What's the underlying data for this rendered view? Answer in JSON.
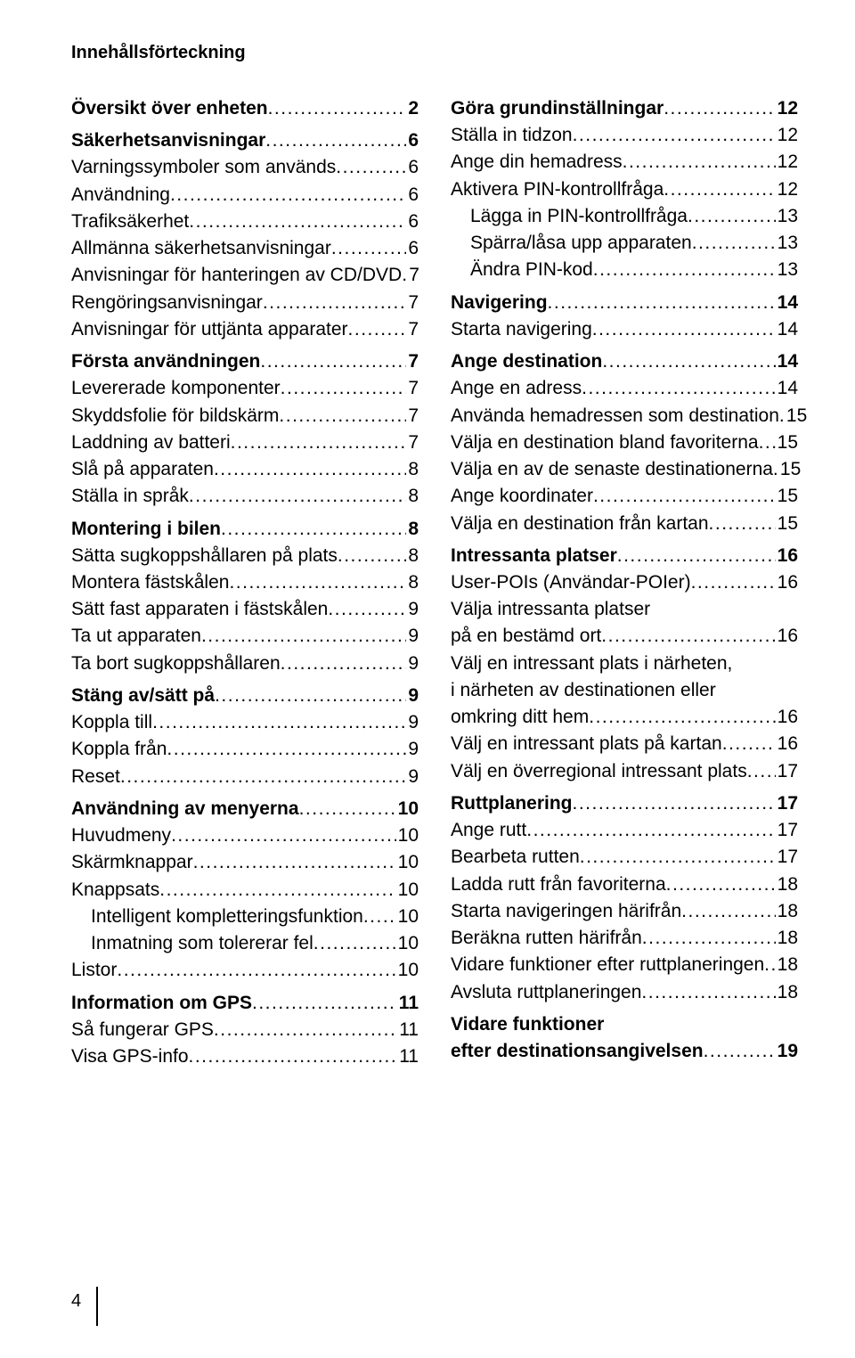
{
  "header": "Innehållsförteckning",
  "page_number": "4",
  "left": [
    {
      "type": "entry",
      "bold": true,
      "label": "Översikt över enheten",
      "page": "2"
    },
    {
      "type": "gap"
    },
    {
      "type": "entry",
      "bold": true,
      "label": "Säkerhetsanvisningar",
      "page": "6"
    },
    {
      "type": "entry",
      "label": "Varningssymboler som används",
      "page": "6"
    },
    {
      "type": "entry",
      "label": "Användning",
      "page": "6"
    },
    {
      "type": "entry",
      "label": "Trafiksäkerhet",
      "page": "6"
    },
    {
      "type": "entry",
      "label": "Allmänna säkerhetsanvisningar",
      "page": "6"
    },
    {
      "type": "entry",
      "label": "Anvisningar för hanteringen av CD/DVD",
      "page": "7"
    },
    {
      "type": "entry",
      "label": "Rengöringsanvisningar",
      "page": "7"
    },
    {
      "type": "entry",
      "label": "Anvisningar för uttjänta apparater",
      "page": "7"
    },
    {
      "type": "gap"
    },
    {
      "type": "entry",
      "bold": true,
      "label": "Första användningen",
      "page": "7"
    },
    {
      "type": "entry",
      "label": "Levererade komponenter",
      "page": "7"
    },
    {
      "type": "entry",
      "label": "Skyddsfolie för bildskärm",
      "page": "7"
    },
    {
      "type": "entry",
      "label": "Laddning av batteri",
      "page": "7"
    },
    {
      "type": "entry",
      "label": "Slå på apparaten",
      "page": "8"
    },
    {
      "type": "entry",
      "label": "Ställa in språk",
      "page": "8"
    },
    {
      "type": "gap"
    },
    {
      "type": "entry",
      "bold": true,
      "label": "Montering i bilen",
      "page": "8"
    },
    {
      "type": "entry",
      "label": "Sätta sugkoppshållaren på plats",
      "page": "8"
    },
    {
      "type": "entry",
      "label": "Montera fästskålen",
      "page": "8"
    },
    {
      "type": "entry",
      "label": "Sätt fast apparaten i fästskålen",
      "page": "9"
    },
    {
      "type": "entry",
      "label": "Ta ut apparaten",
      "page": "9"
    },
    {
      "type": "entry",
      "label": "Ta bort sugkoppshållaren",
      "page": "9"
    },
    {
      "type": "gap"
    },
    {
      "type": "entry",
      "bold": true,
      "label": "Stäng av/sätt på",
      "page": "9"
    },
    {
      "type": "entry",
      "label": "Koppla till",
      "page": "9"
    },
    {
      "type": "entry",
      "label": "Koppla från",
      "page": "9"
    },
    {
      "type": "entry",
      "label": "Reset",
      "page": "9"
    },
    {
      "type": "gap"
    },
    {
      "type": "entry",
      "bold": true,
      "label": "Användning av menyerna",
      "page": "10"
    },
    {
      "type": "entry",
      "label": "Huvudmeny",
      "page": "10"
    },
    {
      "type": "entry",
      "label": "Skärmknappar",
      "page": "10"
    },
    {
      "type": "entry",
      "label": "Knappsats",
      "page": "10"
    },
    {
      "type": "entry",
      "indent": 1,
      "label": "Intelligent kompletteringsfunktion",
      "page": "10"
    },
    {
      "type": "entry",
      "indent": 1,
      "label": "Inmatning som tolererar fel",
      "page": "10"
    },
    {
      "type": "entry",
      "label": "Listor",
      "page": "10"
    },
    {
      "type": "gap"
    },
    {
      "type": "entry",
      "bold": true,
      "label": "Information om GPS",
      "page": "11"
    },
    {
      "type": "entry",
      "label": "Så fungerar GPS",
      "page": "11"
    },
    {
      "type": "entry",
      "label": "Visa GPS-info",
      "page": "11"
    }
  ],
  "right": [
    {
      "type": "entry",
      "bold": true,
      "label": "Göra grundinställningar",
      "page": "12"
    },
    {
      "type": "entry",
      "label": "Ställa in tidzon",
      "page": "12"
    },
    {
      "type": "entry",
      "label": "Ange din hemadress",
      "page": "12"
    },
    {
      "type": "entry",
      "label": "Aktivera PIN-kontrollfråga",
      "page": "12"
    },
    {
      "type": "entry",
      "indent": 1,
      "label": "Lägga in PIN-kontrollfråga",
      "page": "13"
    },
    {
      "type": "entry",
      "indent": 1,
      "label": "Spärra/låsa upp apparaten",
      "page": "13"
    },
    {
      "type": "entry",
      "indent": 1,
      "label": "Ändra PIN-kod",
      "page": "13"
    },
    {
      "type": "gap"
    },
    {
      "type": "entry",
      "bold": true,
      "label": "Navigering",
      "page": "14"
    },
    {
      "type": "entry",
      "label": "Starta navigering",
      "page": "14"
    },
    {
      "type": "gap"
    },
    {
      "type": "entry",
      "bold": true,
      "label": "Ange destination",
      "page": "14"
    },
    {
      "type": "entry",
      "label": "Ange en adress",
      "page": "14"
    },
    {
      "type": "entry",
      "label": "Använda hemadressen som destination",
      "page": "15"
    },
    {
      "type": "entry",
      "label": "Välja en destination bland favoriterna",
      "page": "15"
    },
    {
      "type": "entry",
      "label": "Välja en av de senaste destinationerna",
      "page": "15"
    },
    {
      "type": "entry",
      "label": "Ange koordinater",
      "page": "15"
    },
    {
      "type": "entry",
      "label": "Välja en destination från kartan",
      "page": "15"
    },
    {
      "type": "gap"
    },
    {
      "type": "entry",
      "bold": true,
      "label": "Intressanta platser",
      "page": "16"
    },
    {
      "type": "entry",
      "label": "User-POIs (Användar-POIer)",
      "page": "16"
    },
    {
      "type": "multi",
      "lines": [
        "Välja intressanta platser",
        "på en bestämd ort"
      ],
      "page": "16"
    },
    {
      "type": "multi",
      "lines": [
        "Välj en intressant plats i närheten,",
        "i närheten av destinationen eller",
        "omkring ditt hem"
      ],
      "page": "16"
    },
    {
      "type": "entry",
      "label": "Välj en intressant plats på kartan",
      "page": "16"
    },
    {
      "type": "entry",
      "label": "Välj en överregional intressant plats",
      "page": "17"
    },
    {
      "type": "gap"
    },
    {
      "type": "entry",
      "bold": true,
      "label": "Ruttplanering",
      "page": "17"
    },
    {
      "type": "entry",
      "label": "Ange rutt",
      "page": "17"
    },
    {
      "type": "entry",
      "label": "Bearbeta rutten",
      "page": "17"
    },
    {
      "type": "entry",
      "label": "Ladda rutt från favoriterna",
      "page": "18"
    },
    {
      "type": "entry",
      "label": "Starta navigeringen härifrån",
      "page": "18"
    },
    {
      "type": "entry",
      "label": "Beräkna rutten härifrån",
      "page": "18"
    },
    {
      "type": "entry",
      "label": "Vidare funktioner efter ruttplaneringen",
      "page": "18"
    },
    {
      "type": "entry",
      "label": "Avsluta ruttplaneringen",
      "page": "18"
    },
    {
      "type": "gap"
    },
    {
      "type": "multi",
      "bold": true,
      "lines": [
        "Vidare funktioner",
        "efter destinationsangivelsen"
      ],
      "page": "19"
    }
  ]
}
